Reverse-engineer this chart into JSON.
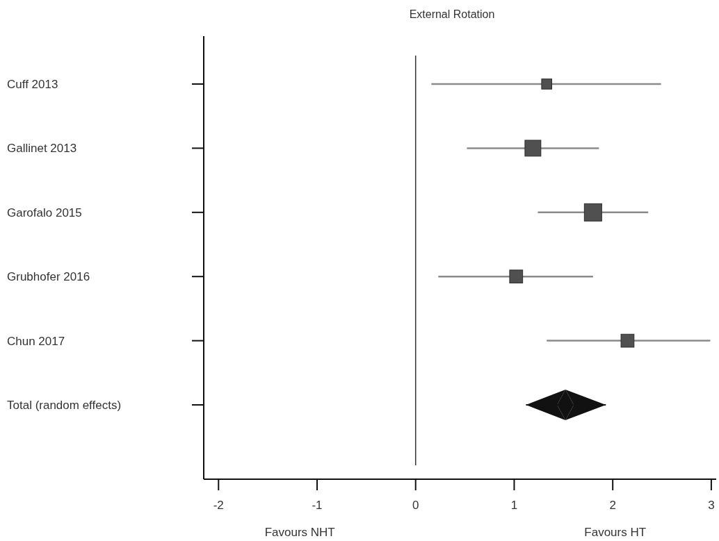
{
  "chart_data": {
    "type": "bubble",
    "title": "External Rotation",
    "orientation": "horizontal",
    "categories": [
      "Cuff 2013",
      "Gallinet 2013",
      "Garofalo 2015",
      "Grubhofer 2016",
      "Chun 2017",
      "Total (random effects)"
    ],
    "xlim": [
      -2.15,
      3.05
    ],
    "xticks": [
      -2,
      -1,
      0,
      1,
      2,
      3
    ],
    "ref_lines": [
      {
        "axis": "x",
        "value": 0,
        "color": "#333333"
      }
    ],
    "annotations": [
      "Favours NHT",
      "Favours HT"
    ],
    "series": [
      {
        "marker": "square",
        "color": "#505050",
        "values": [
          1.33,
          1.19,
          1.8,
          1.02,
          2.15,
          null
        ],
        "errors": [
          [
            0.16,
            2.49
          ],
          [
            0.52,
            1.86
          ],
          [
            1.24,
            2.36
          ],
          [
            0.23,
            1.8
          ],
          [
            1.33,
            2.99
          ],
          null
        ],
        "sizes": [
          0.34,
          0.84,
          1,
          0.56,
          0.56,
          null
        ]
      },
      {
        "type": "scatter",
        "marker": "diamond",
        "color": "#111111",
        "values": [
          null,
          null,
          null,
          null,
          null,
          1.52
        ],
        "errors": [
          null,
          null,
          null,
          null,
          null,
          [
            1.12,
            1.93
          ]
        ]
      }
    ]
  }
}
